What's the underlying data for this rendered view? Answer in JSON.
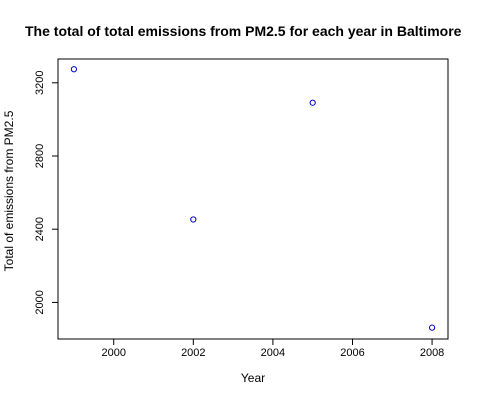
{
  "chart_data": {
    "type": "scatter",
    "title": "The total of total emissions from PM2.5 for each year in Baltimore",
    "xlabel": "Year",
    "ylabel": "Total of emissions from PM2.5",
    "x": [
      1999,
      2002,
      2005,
      2008
    ],
    "y": [
      3274,
      2453,
      3091,
      1862
    ],
    "xlim": [
      1998.6,
      2008.4
    ],
    "ylim": [
      1800,
      3330
    ],
    "x_ticks": [
      2000,
      2002,
      2004,
      2006,
      2008
    ],
    "y_ticks": [
      2000,
      2400,
      2800,
      3200
    ],
    "grid": false,
    "point_color": "#0000cc"
  }
}
